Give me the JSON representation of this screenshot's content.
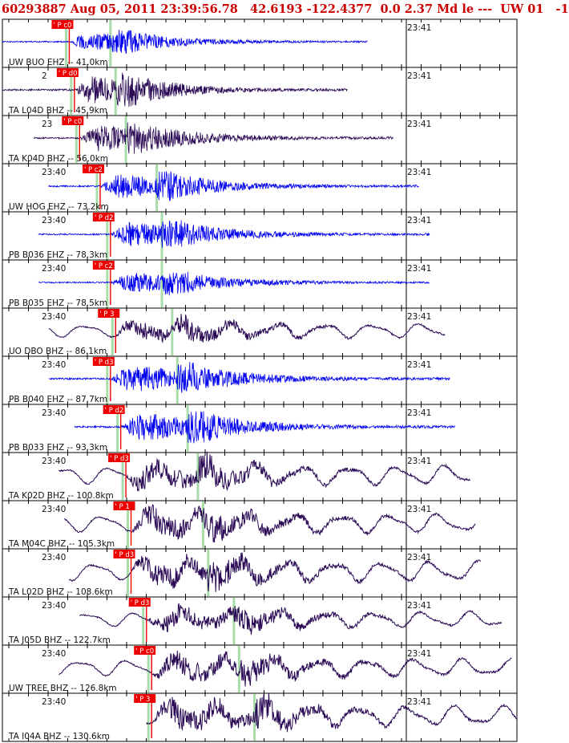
{
  "header": "60293887 Aug 05, 2011 23:39:56.78   42.6193 -122.4377  0.0 2.37 Md le ---  UW 01   -1",
  "colors": {
    "blue": "#0000ee",
    "purple": "#2a0a55",
    "pick": "#ee0000",
    "green": "#a8dca8",
    "frame": "#000000"
  },
  "chart_data": {
    "type": "line",
    "title": "60293887 Aug 05, 2011 23:39:56.78   42.6193 -122.4377  0.0 2.37 Md le ---  UW 01   -1",
    "xlabel": "",
    "ylabel": "",
    "time_ticks": [
      "23:40",
      "23:41"
    ],
    "series": [
      {
        "name": "UW BUO EHZ -- 41.0km",
        "tick_left": "",
        "tick_right": "23:41",
        "pick": "P c0",
        "color": "blue",
        "start": 0.0,
        "end": 0.71,
        "p_arrival": 0.13,
        "s_arrival": 0.21,
        "amp": 0.55,
        "style": "hf"
      },
      {
        "name": "TA L04D BHZ -- 45.9km",
        "tick_left": "2",
        "tick_right": "23:41",
        "pick": "P d0",
        "color": "purple",
        "start": 0.0,
        "end": 0.67,
        "p_arrival": 0.14,
        "s_arrival": 0.22,
        "amp": 0.8,
        "style": "hf"
      },
      {
        "name": "TA K04D BHZ -- 56.0km",
        "tick_left": "23",
        "tick_right": "23:41",
        "pick": "P c0",
        "color": "purple",
        "start": 0.06,
        "end": 0.76,
        "p_arrival": 0.15,
        "s_arrival": 0.24,
        "amp": 0.75,
        "style": "hf"
      },
      {
        "name": "UW HOG EHZ -- 73.2km",
        "tick_left": "23:40",
        "tick_right": "23:41",
        "pick": "P c2",
        "color": "blue",
        "start": 0.09,
        "end": 0.81,
        "p_arrival": 0.19,
        "s_arrival": 0.3,
        "amp": 0.7,
        "style": "hf"
      },
      {
        "name": "PB B036 EHZ -- 78.3km",
        "tick_left": "23:40",
        "tick_right": "23:41",
        "pick": "P d2",
        "color": "blue",
        "start": 0.07,
        "end": 0.83,
        "p_arrival": 0.21,
        "s_arrival": 0.31,
        "amp": 0.7,
        "style": "hf"
      },
      {
        "name": "PB B035 EHZ -- 78.5km",
        "tick_left": "23:40",
        "tick_right": "23:41",
        "pick": "P c2",
        "color": "blue",
        "start": 0.07,
        "end": 0.83,
        "p_arrival": 0.21,
        "s_arrival": 0.31,
        "amp": 0.6,
        "style": "hf"
      },
      {
        "name": "UO DBO BHZ -- 86.1km",
        "tick_left": "23:40",
        "tick_right": "23:41",
        "pick": "P 3",
        "color": "purple",
        "start": 0.09,
        "end": 0.86,
        "p_arrival": 0.22,
        "s_arrival": 0.33,
        "amp": 0.65,
        "style": "lf"
      },
      {
        "name": "PB B040 EHZ -- 87.7km",
        "tick_left": "23:40",
        "tick_right": "23:41",
        "pick": "P d3",
        "color": "blue",
        "start": 0.09,
        "end": 0.87,
        "p_arrival": 0.21,
        "s_arrival": 0.34,
        "amp": 0.8,
        "style": "hf"
      },
      {
        "name": "PB B033 EHZ -- 93.3km",
        "tick_left": "23:40",
        "tick_right": "23:41",
        "pick": "P d2",
        "color": "blue",
        "start": 0.14,
        "end": 0.88,
        "p_arrival": 0.23,
        "s_arrival": 0.36,
        "amp": 0.8,
        "style": "hf"
      },
      {
        "name": "TA K02D BHZ -- 100.8km",
        "tick_left": "23:40",
        "tick_right": "23:41",
        "pick": "P d3",
        "color": "purple",
        "start": 0.11,
        "end": 0.91,
        "p_arrival": 0.24,
        "s_arrival": 0.38,
        "amp": 0.85,
        "style": "lf"
      },
      {
        "name": "TA M04C BHZ -- 105.3km",
        "tick_left": "23:40",
        "tick_right": "23:41",
        "pick": "P 1",
        "color": "purple",
        "start": 0.12,
        "end": 0.92,
        "p_arrival": 0.25,
        "s_arrival": 0.39,
        "amp": 0.85,
        "style": "lf"
      },
      {
        "name": "TA L02D BHZ -- 108.6km",
        "tick_left": "23:40",
        "tick_right": "23:41",
        "pick": "P d3",
        "color": "purple",
        "start": 0.13,
        "end": 0.93,
        "p_arrival": 0.25,
        "s_arrival": 0.4,
        "amp": 0.9,
        "style": "lf"
      },
      {
        "name": "TA J05D BHZ -- 122.7km",
        "tick_left": "23:40",
        "tick_right": "23:41",
        "pick": "P d3",
        "color": "purple",
        "start": 0.15,
        "end": 0.97,
        "p_arrival": 0.28,
        "s_arrival": 0.45,
        "amp": 0.7,
        "style": "lf"
      },
      {
        "name": "UW TREE BHZ -- 126.8km",
        "tick_left": "23:40",
        "tick_right": "23:41",
        "pick": "P c0",
        "color": "purple",
        "start": 0.11,
        "end": 0.99,
        "p_arrival": 0.29,
        "s_arrival": 0.46,
        "amp": 0.8,
        "style": "lf"
      },
      {
        "name": "TA I04A BHZ -- 130.6km",
        "tick_left": "23:40",
        "tick_right": "23:41",
        "pick": "P 3",
        "color": "purple",
        "start": 0.28,
        "end": 1.0,
        "p_arrival": 0.29,
        "s_arrival": 0.49,
        "amp": 0.9,
        "style": "lf"
      }
    ]
  }
}
